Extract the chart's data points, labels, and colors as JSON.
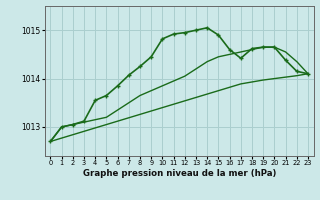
{
  "title": "Graphe pression niveau de la mer (hPa)",
  "bg_color": "#cce8e8",
  "grid_color": "#aacece",
  "line_color": "#1a6b1a",
  "x_ticks": [
    0,
    1,
    2,
    3,
    4,
    5,
    6,
    7,
    8,
    9,
    10,
    11,
    12,
    13,
    14,
    15,
    16,
    17,
    18,
    19,
    20,
    21,
    22,
    23
  ],
  "y_ticks": [
    1013,
    1014,
    1015
  ],
  "ylim": [
    1012.4,
    1015.5
  ],
  "xlim": [
    -0.5,
    23.5
  ],
  "series": [
    {
      "x": [
        0,
        1,
        2,
        3,
        4,
        5,
        6,
        7,
        8,
        9,
        10,
        11,
        12,
        13,
        14,
        15,
        16,
        17,
        18,
        19,
        20,
        21,
        22,
        23
      ],
      "y": [
        1012.7,
        1012.77,
        1012.84,
        1012.91,
        1012.98,
        1013.05,
        1013.12,
        1013.19,
        1013.26,
        1013.33,
        1013.4,
        1013.47,
        1013.54,
        1013.61,
        1013.68,
        1013.75,
        1013.82,
        1013.89,
        1013.93,
        1013.97,
        1014.0,
        1014.03,
        1014.06,
        1014.1
      ],
      "marker": false,
      "lw": 1.0
    },
    {
      "x": [
        0,
        1,
        2,
        3,
        4,
        5,
        6,
        7,
        8,
        9,
        10,
        11,
        12,
        13,
        14,
        15,
        16,
        17,
        18,
        19,
        20,
        21,
        22,
        23
      ],
      "y": [
        1012.7,
        1013.0,
        1013.05,
        1013.1,
        1013.15,
        1013.2,
        1013.35,
        1013.5,
        1013.65,
        1013.75,
        1013.85,
        1013.95,
        1014.05,
        1014.2,
        1014.35,
        1014.45,
        1014.5,
        1014.55,
        1014.6,
        1014.65,
        1014.65,
        1014.55,
        1014.35,
        1014.1
      ],
      "marker": false,
      "lw": 1.0
    },
    {
      "x": [
        0,
        1,
        2,
        3,
        4,
        5,
        6,
        7,
        8,
        9,
        10,
        11,
        12,
        13,
        14,
        15,
        16,
        17,
        18,
        19,
        20,
        21,
        22,
        23
      ],
      "y": [
        1012.7,
        1013.0,
        1013.05,
        1013.12,
        1013.55,
        1013.65,
        1013.85,
        1014.07,
        1014.25,
        1014.45,
        1014.82,
        1014.92,
        1014.95,
        1015.0,
        1015.05,
        1014.9,
        1014.6,
        1014.42,
        1014.62,
        1014.65,
        1014.65,
        1014.38,
        1014.15,
        1014.1
      ],
      "marker": true,
      "lw": 1.2
    }
  ]
}
